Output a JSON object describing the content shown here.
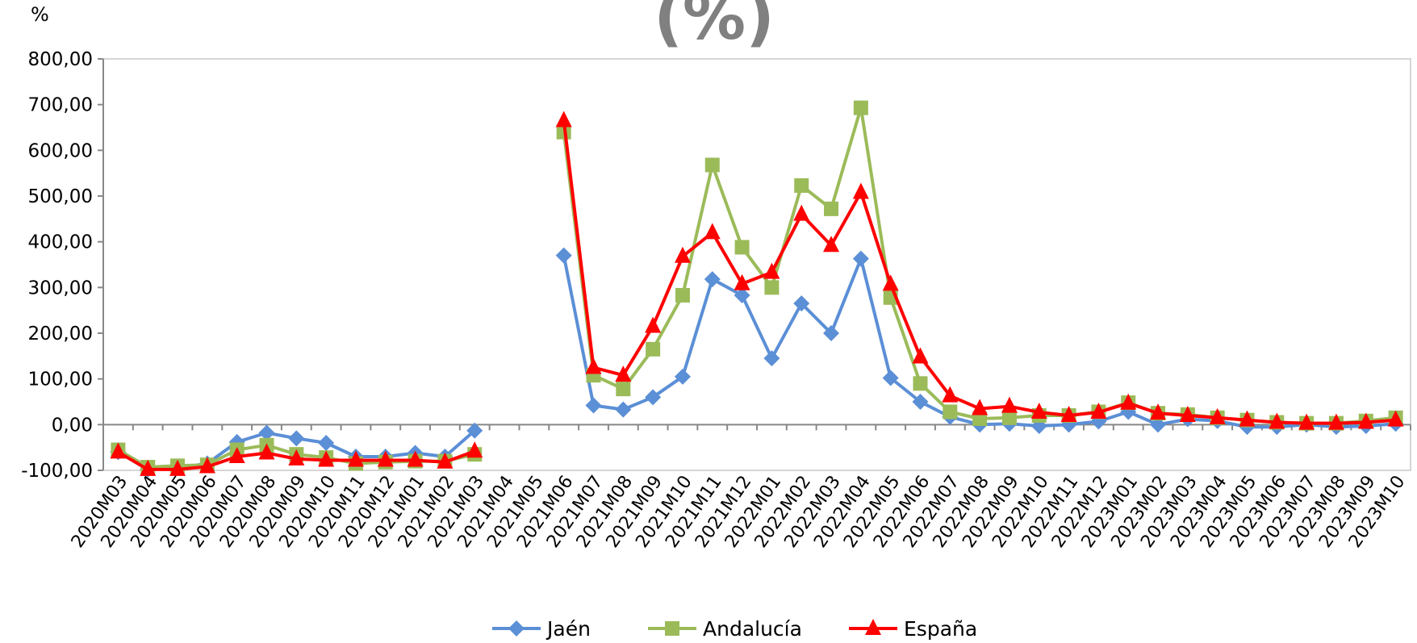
{
  "chart_data": {
    "type": "line",
    "title": "(%)",
    "ylabel": "%",
    "xlabel": "",
    "ylim": [
      -100,
      800
    ],
    "yticks": [
      -100,
      0,
      100,
      200,
      300,
      400,
      500,
      600,
      700,
      800
    ],
    "ytick_labels": [
      "-100,00",
      "0,00",
      "100,00",
      "200,00",
      "300,00",
      "400,00",
      "500,00",
      "600,00",
      "700,00",
      "800,00"
    ],
    "grid": false,
    "legend_position": "bottom",
    "categories": [
      "2020M03",
      "2020M04",
      "2020M05",
      "2020M06",
      "2020M07",
      "2020M08",
      "2020M09",
      "2020M10",
      "2020M11",
      "2020M12",
      "2021M01",
      "2021M02",
      "2021M03",
      "2021M04",
      "2021M05",
      "2021M06",
      "2021M07",
      "2021M08",
      "2021M09",
      "2021M10",
      "2021M11",
      "2021M12",
      "2022M01",
      "2022M02",
      "2022M03",
      "2022M04",
      "2022M05",
      "2022M06",
      "2022M07",
      "2022M08",
      "2022M09",
      "2022M10",
      "2022M11",
      "2022M12",
      "2023M01",
      "2023M02",
      "2023M03",
      "2023M04",
      "2023M05",
      "2023M06",
      "2023M07",
      "2023M08",
      "2023M09",
      "2023M10"
    ],
    "series": [
      {
        "name": "Jaén",
        "color": "#5b8fd6",
        "marker": "diamond",
        "values": [
          -60,
          -98,
          -95,
          -85,
          -38,
          -18,
          -30,
          -40,
          -70,
          -70,
          -62,
          -70,
          -13,
          null,
          null,
          370,
          42,
          33,
          60,
          105,
          318,
          283,
          145,
          265,
          200,
          363,
          102,
          50,
          17,
          0,
          2,
          -3,
          0,
          7,
          28,
          0,
          12,
          8,
          -5,
          -5,
          0,
          -5,
          -3,
          2
        ]
      },
      {
        "name": "Andalucía",
        "color": "#9bbb59",
        "marker": "square",
        "values": [
          -55,
          -93,
          -90,
          -88,
          -55,
          -45,
          -65,
          -72,
          -85,
          -82,
          -80,
          -80,
          -65,
          null,
          null,
          640,
          108,
          78,
          165,
          283,
          568,
          388,
          300,
          523,
          472,
          693,
          278,
          90,
          28,
          13,
          15,
          20,
          20,
          28,
          48,
          25,
          22,
          15,
          10,
          5,
          3,
          3,
          8,
          15
        ]
      },
      {
        "name": "España",
        "color": "#ff0000",
        "marker": "triangle",
        "values": [
          -60,
          -98,
          -98,
          -92,
          -70,
          -62,
          -75,
          -78,
          -78,
          -78,
          -78,
          -82,
          -58,
          null,
          null,
          665,
          125,
          108,
          215,
          368,
          420,
          308,
          333,
          460,
          392,
          508,
          307,
          148,
          63,
          35,
          40,
          27,
          20,
          27,
          47,
          25,
          20,
          15,
          10,
          5,
          3,
          3,
          5,
          10
        ]
      }
    ]
  }
}
